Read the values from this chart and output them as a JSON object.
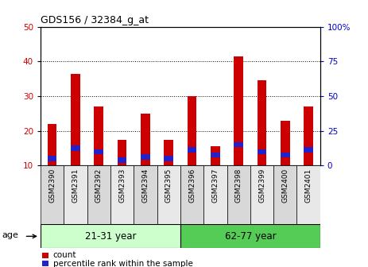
{
  "title": "GDS156 / 32384_g_at",
  "samples": [
    "GSM2390",
    "GSM2391",
    "GSM2392",
    "GSM2393",
    "GSM2394",
    "GSM2395",
    "GSM2396",
    "GSM2397",
    "GSM2398",
    "GSM2399",
    "GSM2400",
    "GSM2401"
  ],
  "count_values": [
    22,
    36.5,
    27,
    17.5,
    25,
    17.5,
    30,
    15.5,
    41.5,
    34.5,
    23,
    27
  ],
  "percentile_values": [
    12,
    15,
    14,
    11.5,
    12.5,
    12,
    14.5,
    13,
    16,
    14,
    13,
    14.5
  ],
  "percentile_blue_height": [
    1.5,
    1.5,
    1.5,
    1.5,
    1.5,
    1.5,
    1.5,
    1.5,
    1.5,
    1.5,
    1.5,
    1.5
  ],
  "group1_label": "21-31 year",
  "group1_indices": [
    0,
    1,
    2,
    3,
    4,
    5
  ],
  "group2_label": "62-77 year",
  "group2_indices": [
    6,
    7,
    8,
    9,
    10,
    11
  ],
  "age_label": "age",
  "ylim_left": [
    10,
    50
  ],
  "ylim_right": [
    0,
    100
  ],
  "yticks_left": [
    10,
    20,
    30,
    40,
    50
  ],
  "yticks_right": [
    0,
    25,
    50,
    75,
    100
  ],
  "ytick_labels_right": [
    "0",
    "25",
    "50",
    "75",
    "100%"
  ],
  "bar_color": "#cc0000",
  "blue_color": "#2222cc",
  "group1_bg": "#ccffcc",
  "group2_bg": "#55cc55",
  "tick_label_color_left": "#cc0000",
  "tick_label_color_right": "#0000cc",
  "legend_count_label": "count",
  "legend_percentile_label": "percentile rank within the sample",
  "bar_width": 0.4,
  "background_color": "#ffffff",
  "xtick_bg_even": "#d8d8d8",
  "xtick_bg_odd": "#e8e8e8"
}
